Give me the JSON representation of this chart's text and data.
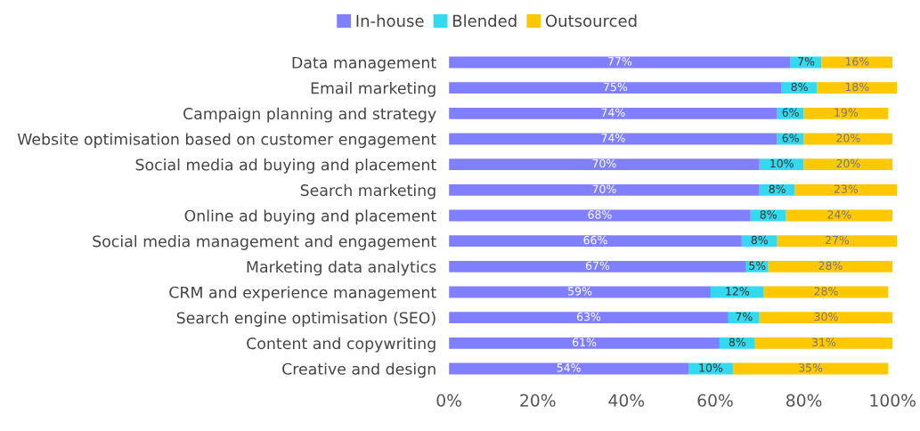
{
  "chart_data": {
    "type": "bar",
    "orientation": "horizontal",
    "stacked": true,
    "legend": "top",
    "grid": false,
    "categories": [
      "Data management",
      "Email marketing",
      "Campaign planning and strategy",
      "Website optimisation based on customer engagement",
      "Social media ad buying and placement",
      "Search marketing",
      "Online ad buying and placement",
      "Social media management and engagement",
      "Marketing data analytics",
      "CRM and experience management",
      "Search engine optimisation (SEO)",
      "Content and copywriting",
      "Creative and design"
    ],
    "series": [
      {
        "name": "In-house",
        "color": "#8080ff",
        "values": [
          77,
          75,
          74,
          74,
          70,
          70,
          68,
          66,
          67,
          59,
          63,
          61,
          54
        ],
        "value_labels": [
          "77%",
          "75%",
          "74%",
          "74%",
          "70%",
          "70%",
          "68%",
          "66%",
          "67%",
          "59%",
          "63%",
          "61%",
          "54%"
        ]
      },
      {
        "name": "Blended",
        "color": "#33d9ee",
        "values": [
          7,
          8,
          6,
          6,
          10,
          8,
          8,
          8,
          5,
          12,
          7,
          8,
          10
        ],
        "value_labels": [
          "7%",
          "8%",
          "6%",
          "6%",
          "10%",
          "8%",
          "8%",
          "8%",
          "5%",
          "12%",
          "7%",
          "8%",
          "10%"
        ]
      },
      {
        "name": "Outsourced",
        "color": "#ffc800",
        "values": [
          16,
          18,
          19,
          20,
          20,
          23,
          24,
          27,
          28,
          28,
          30,
          31,
          35
        ],
        "value_labels": [
          "16%",
          "18%",
          "19%",
          "20%",
          "20%",
          "23%",
          "24%",
          "27%",
          "28%",
          "28%",
          "30%",
          "31%",
          "35%"
        ]
      }
    ],
    "xlim": [
      0,
      101
    ],
    "xticks": [
      {
        "value": 0,
        "label": "0%"
      },
      {
        "value": 20,
        "label": "20%"
      },
      {
        "value": 40,
        "label": "40%"
      },
      {
        "value": 60,
        "label": "60%"
      },
      {
        "value": 80,
        "label": "80%"
      },
      {
        "value": 100,
        "label": "100%"
      }
    ]
  }
}
